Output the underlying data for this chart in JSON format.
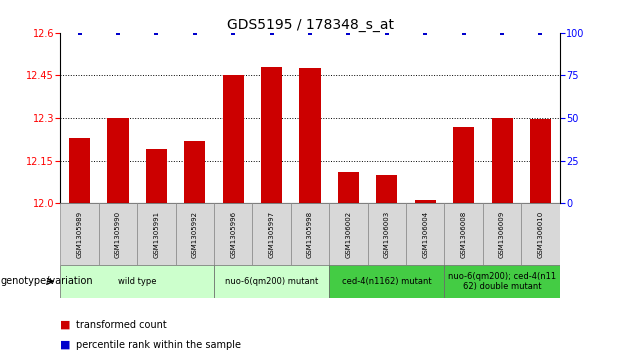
{
  "title": "GDS5195 / 178348_s_at",
  "samples": [
    "GSM1305989",
    "GSM1305990",
    "GSM1305991",
    "GSM1305992",
    "GSM1305996",
    "GSM1305997",
    "GSM1305998",
    "GSM1306002",
    "GSM1306003",
    "GSM1306004",
    "GSM1306008",
    "GSM1306009",
    "GSM1306010"
  ],
  "bar_values": [
    12.23,
    12.3,
    12.19,
    12.22,
    12.45,
    12.48,
    12.475,
    12.11,
    12.1,
    12.01,
    12.27,
    12.3,
    12.295
  ],
  "percentile_values": [
    100,
    100,
    100,
    100,
    100,
    100,
    100,
    100,
    100,
    100,
    100,
    100,
    100
  ],
  "bar_color": "#cc0000",
  "dot_color": "#0000cc",
  "ylim_left": [
    12.0,
    12.6
  ],
  "ylim_right": [
    0,
    100
  ],
  "yticks_left": [
    12.0,
    12.15,
    12.3,
    12.45,
    12.6
  ],
  "yticks_right": [
    0,
    25,
    50,
    75,
    100
  ],
  "gridlines": [
    12.15,
    12.3,
    12.45
  ],
  "group_info": [
    {
      "label": "wild type",
      "span": [
        0,
        3
      ],
      "color": "#ccffcc"
    },
    {
      "label": "nuo-6(qm200) mutant",
      "span": [
        4,
        6
      ],
      "color": "#ccffcc"
    },
    {
      "label": "ced-4(n1162) mutant",
      "span": [
        7,
        9
      ],
      "color": "#44cc44"
    },
    {
      "label": "nuo-6(qm200); ced-4(n11\n62) double mutant",
      "span": [
        10,
        12
      ],
      "color": "#44cc44"
    }
  ],
  "xlabel_genotype": "genotype/variation",
  "legend_bar_label": "transformed count",
  "legend_dot_label": "percentile rank within the sample",
  "title_fontsize": 10,
  "tick_fontsize": 7,
  "sample_fontsize": 5,
  "group_fontsize": 6,
  "legend_fontsize": 7
}
